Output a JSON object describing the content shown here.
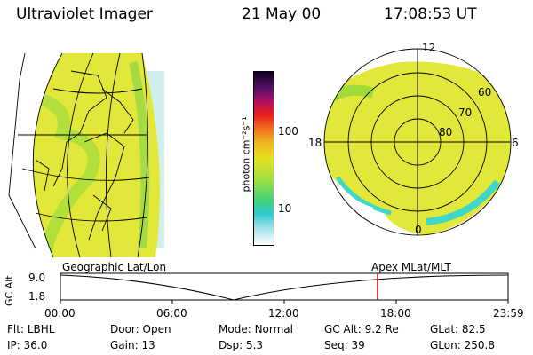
{
  "header": {
    "instrument": "Ultraviolet Imager",
    "date": "21 May 00",
    "time": "17:08:53 UT"
  },
  "colorbar": {
    "label": "photon cm⁻²s⁻¹",
    "ticks": [
      "100",
      "10"
    ]
  },
  "polar": {
    "mlt_labels": [
      "12",
      "18",
      "6",
      "0"
    ],
    "lat_labels": [
      "60",
      "70",
      "80"
    ]
  },
  "panel_labels": {
    "left": "Geographic Lat/Lon",
    "right": "Apex MLat/MLT"
  },
  "timeline": {
    "ylabel": "GC Alt",
    "y_ticks": [
      "9.0",
      "1.8"
    ],
    "x_ticks": [
      "00:00",
      "06:00",
      "12:00",
      "18:00",
      "23:59"
    ]
  },
  "footer": {
    "row1": [
      {
        "label": "Flt:",
        "value": "LBHL"
      },
      {
        "label": "Door:",
        "value": "Open"
      },
      {
        "label": "Mode:",
        "value": "Normal"
      },
      {
        "label": "GC Alt:",
        "value": "9.2 Re"
      },
      {
        "label": "GLat:",
        "value": "82.5"
      }
    ],
    "row2": [
      {
        "label": "IP:",
        "value": "36.0"
      },
      {
        "label": "Gain:",
        "value": "13"
      },
      {
        "label": "Dsp:",
        "value": "5.3"
      },
      {
        "label": "Seq:",
        "value": "39"
      },
      {
        "label": "GLon:",
        "value": "250.8"
      }
    ]
  },
  "colors": {
    "aurora_yellow": "#e2e83a",
    "aurora_green": "#9fdc3a",
    "cyan": "#3fd8c8",
    "marker_red": "#d40000"
  }
}
